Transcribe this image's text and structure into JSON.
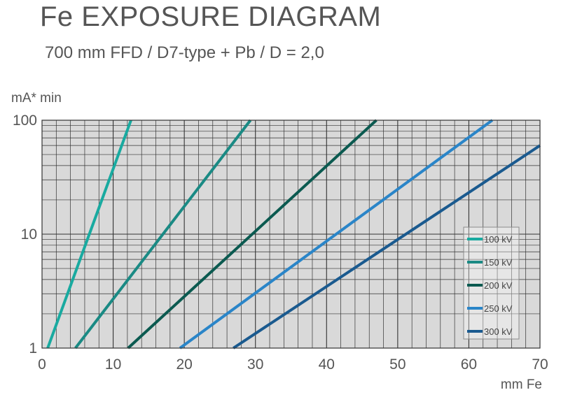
{
  "chart_data": {
    "type": "line",
    "title": "Fe EXPOSURE DIAGRAM",
    "subtitle": "700 mm FFD / D7-type + Pb / D = 2,0",
    "xlabel": "mm Fe",
    "ylabel": "mA* min",
    "xlim": [
      0,
      70
    ],
    "ylim": [
      1,
      100
    ],
    "y_scale": "log",
    "grid": true,
    "legend_position": "right",
    "x_ticks": [
      {
        "value": 0,
        "label": "0"
      },
      {
        "value": 10,
        "label": "10"
      },
      {
        "value": 20,
        "label": "20"
      },
      {
        "value": 30,
        "label": "30"
      },
      {
        "value": 40,
        "label": "40"
      },
      {
        "value": 50,
        "label": "50"
      },
      {
        "value": 60,
        "label": "60"
      },
      {
        "value": 70,
        "label": "70"
      }
    ],
    "y_ticks": [
      {
        "value": 1,
        "label": "1"
      },
      {
        "value": 10,
        "label": "10"
      },
      {
        "value": 100,
        "label": "100"
      }
    ],
    "series": [
      {
        "name": "100 kV",
        "color": "#19aaa0",
        "points": [
          [
            0.8,
            1
          ],
          [
            12.5,
            100
          ]
        ]
      },
      {
        "name": "150 kV",
        "color": "#1a8a84",
        "points": [
          [
            4.7,
            1
          ],
          [
            29.3,
            100
          ]
        ]
      },
      {
        "name": "200 kV",
        "color": "#0b5a50",
        "points": [
          [
            12.1,
            1
          ],
          [
            47.0,
            100
          ]
        ]
      },
      {
        "name": "250 kV",
        "color": "#2a85c8",
        "points": [
          [
            19.4,
            1
          ],
          [
            63.3,
            100
          ]
        ]
      },
      {
        "name": "300 kV",
        "color": "#1a5a8f",
        "points": [
          [
            26.9,
            1
          ],
          [
            70.0,
            60
          ]
        ]
      }
    ]
  }
}
